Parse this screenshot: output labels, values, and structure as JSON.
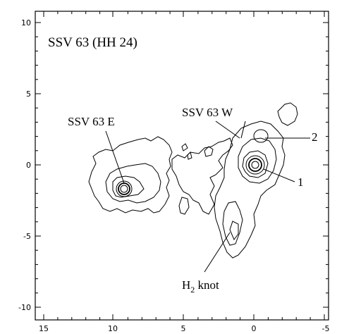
{
  "figure": {
    "title": "SSV 63 (HH 24)",
    "x_ticks": [
      "15",
      "10",
      "5",
      "0",
      "-5"
    ],
    "y_ticks": [
      "10",
      "5",
      "0",
      "-5",
      "-10"
    ],
    "labels": {
      "east": "SSV 63 E",
      "west": "SSV 63 W",
      "source_1": "1",
      "source_2": "2",
      "knot_main": "H",
      "knot_sub": "2",
      "knot_tail": " knot"
    },
    "colors": {
      "ink": "#000000",
      "background": "#ffffff"
    }
  }
}
